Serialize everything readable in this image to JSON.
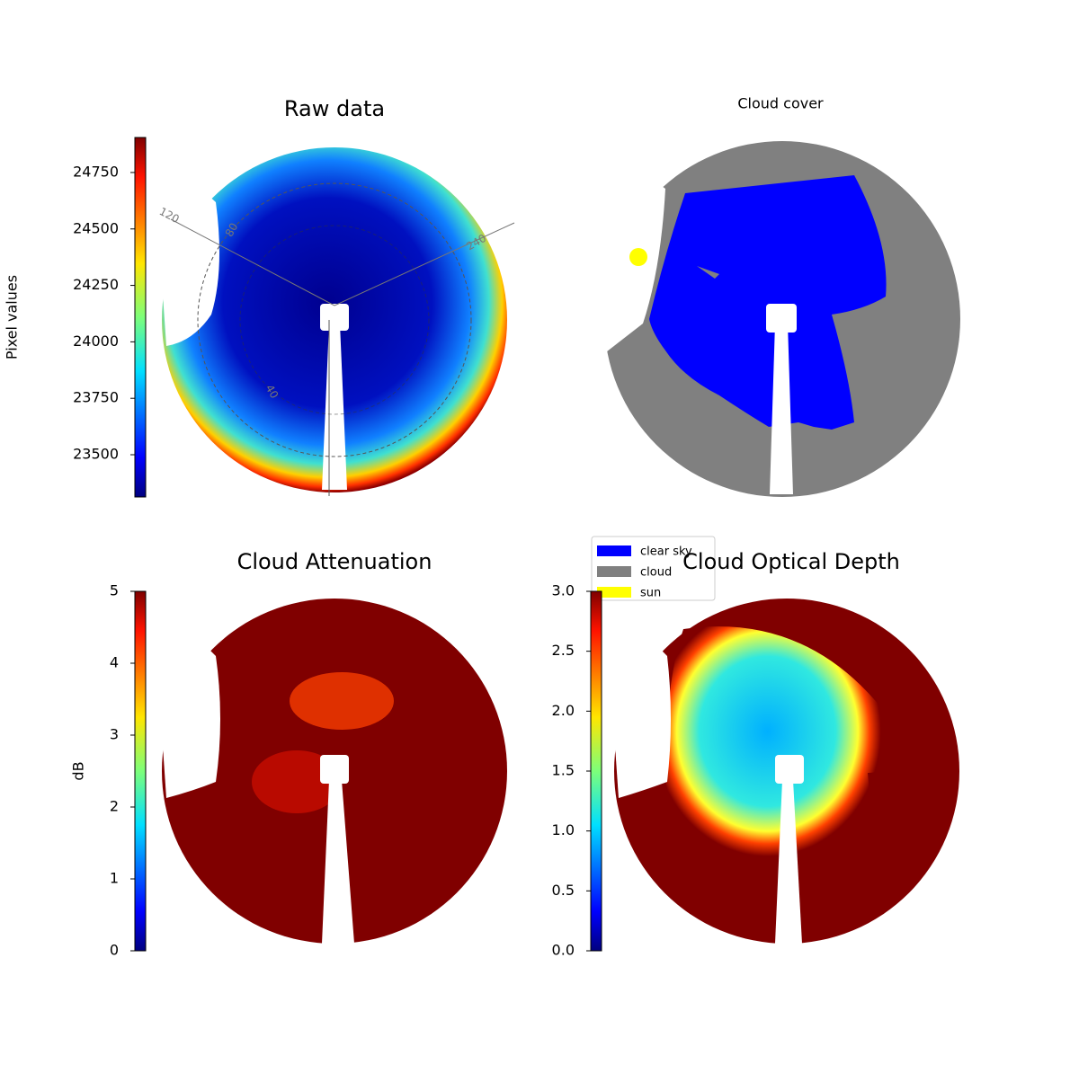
{
  "chart_data": [
    {
      "type": "image",
      "title": "Raw data",
      "colorbar_label": "Pixel values",
      "colormap": "jet",
      "ylim": [
        23313,
        24905
      ],
      "yticks": [
        23500,
        23750,
        24000,
        24250,
        24500,
        24750
      ],
      "annotations": [
        "120",
        "80",
        "240",
        "40"
      ]
    },
    {
      "type": "image",
      "title": "Cloud cover",
      "series": [
        {
          "name": "clear sky",
          "color": "#0000ff"
        },
        {
          "name": "cloud",
          "color": "#808080"
        },
        {
          "name": "sun",
          "color": "#ffff00"
        }
      ]
    },
    {
      "type": "image",
      "title": "Cloud Attenuation",
      "colorbar_label": "dB",
      "colormap": "jet",
      "ylim": [
        0,
        5
      ],
      "yticks": [
        0,
        1,
        2,
        3,
        4,
        5
      ]
    },
    {
      "type": "image",
      "title": "Cloud Optical Depth",
      "colormap": "jet",
      "ylim": [
        0,
        3
      ],
      "yticks": [
        {
          "value": 0,
          "label": "0.0"
        },
        0.5,
        {
          "value": 1,
          "label": "1.0"
        },
        1.5,
        {
          "value": 2,
          "label": "2.0"
        },
        2.5,
        {
          "value": 3,
          "label": "3.0"
        }
      ]
    }
  ]
}
